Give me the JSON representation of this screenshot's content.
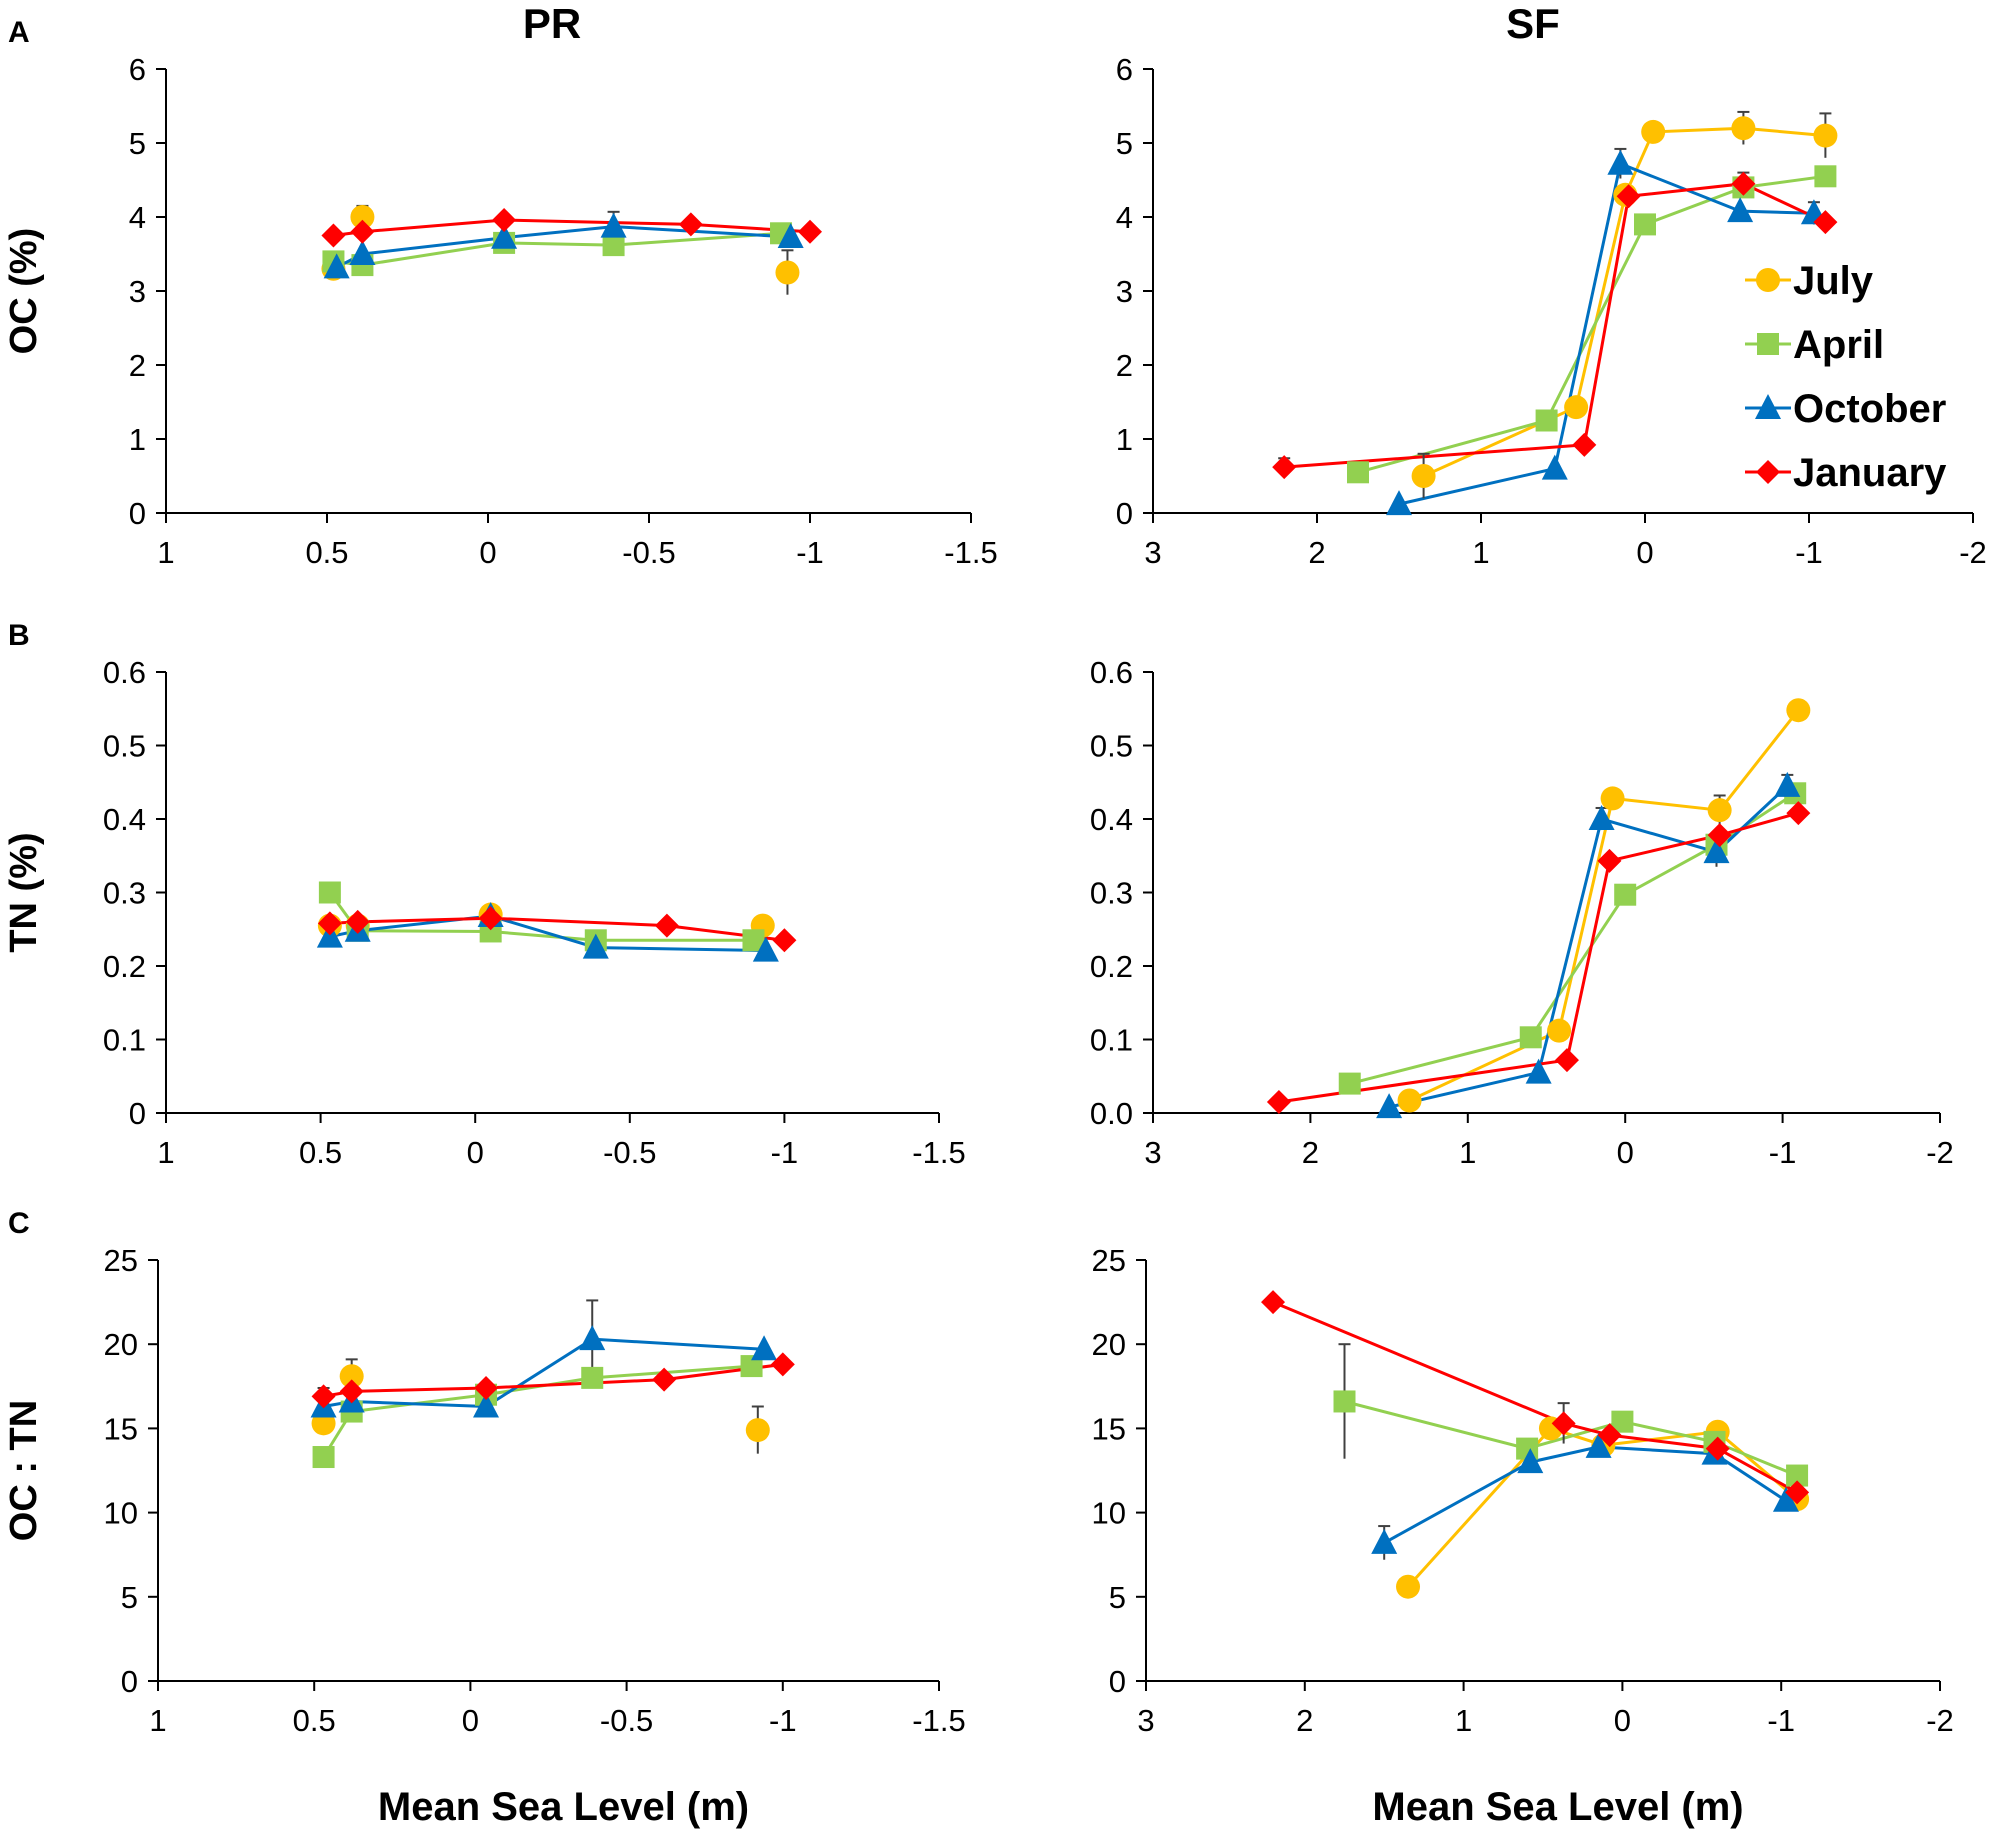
{
  "site_titles": [
    "PR",
    "SF"
  ],
  "panel_letters": [
    "A",
    "B",
    "C"
  ],
  "colors": {
    "July": "#ffc000",
    "April": "#92d050",
    "October": "#0070c0",
    "January": "#ff0000",
    "axis": "#000000",
    "errorbar": "#404040"
  },
  "legend": {
    "placement": "right, inside SF OC panel",
    "items": [
      {
        "label": "July",
        "series": "July",
        "marker": "circle"
      },
      {
        "label": "April",
        "series": "April",
        "marker": "square"
      },
      {
        "label": "October",
        "series": "October",
        "marker": "triangle"
      },
      {
        "label": "January",
        "series": "January",
        "marker": "diamond"
      }
    ]
  },
  "chart_data": [
    {
      "type": "line",
      "row": 0,
      "col": 0,
      "title": "PR",
      "panel": "A",
      "ylabel": "OC (%)",
      "xlabel": "",
      "xlim": [
        1,
        -1.5
      ],
      "ylim": [
        0,
        6
      ],
      "xticks": [
        "1",
        "0.5",
        "0",
        "-0.5",
        "-1",
        "-1.5"
      ],
      "yticks": [
        "0",
        "1",
        "2",
        "3",
        "4",
        "5",
        "6"
      ],
      "series": [
        {
          "name": "July",
          "marker": "circle",
          "line": false,
          "points": [
            {
              "x": 0.48,
              "y": 3.3
            },
            {
              "x": 0.39,
              "y": 4.0,
              "err": 0.15
            },
            {
              "x": -0.93,
              "y": 3.25,
              "err": 0.3
            }
          ]
        },
        {
          "name": "April",
          "marker": "square",
          "line": true,
          "points": [
            {
              "x": 0.48,
              "y": 3.4
            },
            {
              "x": 0.39,
              "y": 3.35
            },
            {
              "x": -0.05,
              "y": 3.65
            },
            {
              "x": -0.39,
              "y": 3.62
            },
            {
              "x": -0.91,
              "y": 3.78
            }
          ]
        },
        {
          "name": "October",
          "marker": "triangle",
          "line": true,
          "points": [
            {
              "x": 0.47,
              "y": 3.32
            },
            {
              "x": 0.39,
              "y": 3.5
            },
            {
              "x": -0.05,
              "y": 3.72
            },
            {
              "x": -0.39,
              "y": 3.87,
              "err": 0.2
            },
            {
              "x": -0.94,
              "y": 3.73
            }
          ]
        },
        {
          "name": "January",
          "marker": "diamond",
          "line": true,
          "points": [
            {
              "x": 0.48,
              "y": 3.75
            },
            {
              "x": 0.39,
              "y": 3.8
            },
            {
              "x": -0.05,
              "y": 3.96
            },
            {
              "x": -0.63,
              "y": 3.9
            },
            {
              "x": -1.0,
              "y": 3.8
            }
          ]
        }
      ]
    },
    {
      "type": "line",
      "row": 0,
      "col": 1,
      "title": "SF",
      "panel": "",
      "ylabel": "",
      "xlabel": "",
      "xlim": [
        3,
        -2
      ],
      "ylim": [
        0,
        6
      ],
      "xticks": [
        "3",
        "2",
        "1",
        "0",
        "-1",
        "-2"
      ],
      "yticks": [
        "0",
        "1",
        "2",
        "3",
        "4",
        "5",
        "6"
      ],
      "legend": true,
      "series": [
        {
          "name": "July",
          "marker": "circle",
          "line": true,
          "points": [
            {
              "x": 1.35,
              "y": 0.5,
              "err": 0.3
            },
            {
              "x": 0.42,
              "y": 1.43
            },
            {
              "x": 0.12,
              "y": 4.3
            },
            {
              "x": -0.05,
              "y": 5.15
            },
            {
              "x": -0.6,
              "y": 5.2,
              "err": 0.22
            },
            {
              "x": -1.1,
              "y": 5.1,
              "err": 0.3
            }
          ]
        },
        {
          "name": "April",
          "marker": "square",
          "line": true,
          "points": [
            {
              "x": 1.75,
              "y": 0.55
            },
            {
              "x": 0.6,
              "y": 1.25
            },
            {
              "x": 0.0,
              "y": 3.9
            },
            {
              "x": -0.6,
              "y": 4.4
            },
            {
              "x": -1.1,
              "y": 4.55
            }
          ]
        },
        {
          "name": "October",
          "marker": "triangle",
          "line": true,
          "points": [
            {
              "x": 1.5,
              "y": 0.12
            },
            {
              "x": 0.55,
              "y": 0.6
            },
            {
              "x": 0.15,
              "y": 4.72,
              "err": 0.2
            },
            {
              "x": -0.58,
              "y": 4.08
            },
            {
              "x": -1.03,
              "y": 4.05,
              "err": 0.15
            }
          ]
        },
        {
          "name": "January",
          "marker": "diamond",
          "line": true,
          "points": [
            {
              "x": 2.2,
              "y": 0.62,
              "err": 0.12
            },
            {
              "x": 0.37,
              "y": 0.92
            },
            {
              "x": 0.1,
              "y": 4.28
            },
            {
              "x": -0.6,
              "y": 4.45,
              "err": 0.15
            },
            {
              "x": -1.1,
              "y": 3.93
            }
          ]
        }
      ]
    },
    {
      "type": "line",
      "row": 1,
      "col": 0,
      "title": "",
      "panel": "B",
      "ylabel": "TN (%)",
      "xlabel": "",
      "xlim": [
        1,
        -1.5
      ],
      "ylim": [
        0,
        0.6
      ],
      "xticks": [
        "1",
        "0.5",
        "0",
        "-0.5",
        "-1",
        "-1.5"
      ],
      "yticks": [
        "0",
        "0.1",
        "0.2",
        "0.3",
        "0.4",
        "0.5",
        "0.6"
      ],
      "series": [
        {
          "name": "July",
          "marker": "circle",
          "line": false,
          "points": [
            {
              "x": 0.47,
              "y": 0.255
            },
            {
              "x": 0.38,
              "y": 0.255
            },
            {
              "x": -0.05,
              "y": 0.27
            },
            {
              "x": -0.93,
              "y": 0.255
            }
          ]
        },
        {
          "name": "April",
          "marker": "square",
          "line": true,
          "points": [
            {
              "x": 0.47,
              "y": 0.3,
              "err": 0.012
            },
            {
              "x": 0.38,
              "y": 0.248
            },
            {
              "x": -0.05,
              "y": 0.247
            },
            {
              "x": -0.39,
              "y": 0.235
            },
            {
              "x": -0.9,
              "y": 0.235
            }
          ]
        },
        {
          "name": "October",
          "marker": "triangle",
          "line": true,
          "points": [
            {
              "x": 0.47,
              "y": 0.24
            },
            {
              "x": 0.38,
              "y": 0.248
            },
            {
              "x": -0.05,
              "y": 0.268
            },
            {
              "x": -0.39,
              "y": 0.225
            },
            {
              "x": -0.94,
              "y": 0.221
            }
          ]
        },
        {
          "name": "January",
          "marker": "diamond",
          "line": true,
          "points": [
            {
              "x": 0.47,
              "y": 0.258
            },
            {
              "x": 0.38,
              "y": 0.26
            },
            {
              "x": -0.05,
              "y": 0.265
            },
            {
              "x": -0.62,
              "y": 0.255
            },
            {
              "x": -1.0,
              "y": 0.235
            }
          ]
        }
      ]
    },
    {
      "type": "line",
      "row": 1,
      "col": 1,
      "title": "",
      "panel": "",
      "ylabel": "",
      "xlabel": "",
      "xlim": [
        3,
        -2
      ],
      "ylim": [
        0,
        0.6
      ],
      "xticks": [
        "3",
        "2",
        "1",
        "0",
        "-1",
        "-2"
      ],
      "yticks": [
        "0.0",
        "0.1",
        "0.2",
        "0.3",
        "0.4",
        "0.5",
        "0.6"
      ],
      "series": [
        {
          "name": "July",
          "marker": "circle",
          "line": true,
          "points": [
            {
              "x": 1.37,
              "y": 0.017
            },
            {
              "x": 0.42,
              "y": 0.112
            },
            {
              "x": 0.08,
              "y": 0.428
            },
            {
              "x": -0.6,
              "y": 0.412,
              "err": 0.02
            },
            {
              "x": -1.1,
              "y": 0.548
            }
          ]
        },
        {
          "name": "April",
          "marker": "square",
          "line": true,
          "points": [
            {
              "x": 1.75,
              "y": 0.04
            },
            {
              "x": 0.6,
              "y": 0.103
            },
            {
              "x": 0.0,
              "y": 0.297
            },
            {
              "x": -0.58,
              "y": 0.365
            },
            {
              "x": -1.08,
              "y": 0.435
            }
          ]
        },
        {
          "name": "October",
          "marker": "triangle",
          "line": true,
          "points": [
            {
              "x": 1.5,
              "y": 0.008
            },
            {
              "x": 0.55,
              "y": 0.055
            },
            {
              "x": 0.15,
              "y": 0.4,
              "err": 0.015
            },
            {
              "x": -0.58,
              "y": 0.355,
              "err": 0.02
            },
            {
              "x": -1.03,
              "y": 0.445,
              "err": 0.015
            }
          ]
        },
        {
          "name": "January",
          "marker": "diamond",
          "line": true,
          "points": [
            {
              "x": 2.2,
              "y": 0.015
            },
            {
              "x": 0.37,
              "y": 0.072
            },
            {
              "x": 0.1,
              "y": 0.343
            },
            {
              "x": -0.6,
              "y": 0.378
            },
            {
              "x": -1.1,
              "y": 0.408
            }
          ]
        }
      ]
    },
    {
      "type": "line",
      "row": 2,
      "col": 0,
      "title": "",
      "panel": "C",
      "ylabel": "OC : TN",
      "xlabel": "Mean Sea Level (m)",
      "xlim": [
        1,
        -1.5
      ],
      "ylim": [
        0,
        25
      ],
      "xticks": [
        "1",
        "0.5",
        "0",
        "-0.5",
        "-1",
        "-1.5"
      ],
      "yticks": [
        "0",
        "5",
        "10",
        "15",
        "20",
        "25"
      ],
      "series": [
        {
          "name": "July",
          "marker": "circle",
          "line": false,
          "points": [
            {
              "x": 0.47,
              "y": 15.3
            },
            {
              "x": 0.38,
              "y": 18.1,
              "err": 1.0
            },
            {
              "x": -0.92,
              "y": 14.9,
              "err": 1.4
            }
          ]
        },
        {
          "name": "April",
          "marker": "square",
          "line": true,
          "points": [
            {
              "x": 0.47,
              "y": 13.3
            },
            {
              "x": 0.38,
              "y": 16.0
            },
            {
              "x": -0.05,
              "y": 17.0
            },
            {
              "x": -0.39,
              "y": 18.0
            },
            {
              "x": -0.9,
              "y": 18.7
            }
          ]
        },
        {
          "name": "October",
          "marker": "triangle",
          "line": true,
          "points": [
            {
              "x": 0.47,
              "y": 16.3
            },
            {
              "x": 0.38,
              "y": 16.6
            },
            {
              "x": -0.05,
              "y": 16.3
            },
            {
              "x": -0.39,
              "y": 20.3,
              "err": 2.3
            },
            {
              "x": -0.94,
              "y": 19.7
            }
          ]
        },
        {
          "name": "January",
          "marker": "diamond",
          "line": true,
          "points": [
            {
              "x": 0.47,
              "y": 16.9,
              "err": 0.5
            },
            {
              "x": 0.38,
              "y": 17.2
            },
            {
              "x": -0.05,
              "y": 17.4
            },
            {
              "x": -0.62,
              "y": 17.9
            },
            {
              "x": -1.0,
              "y": 18.8
            }
          ]
        }
      ]
    },
    {
      "type": "line",
      "row": 2,
      "col": 1,
      "title": "",
      "panel": "",
      "ylabel": "",
      "xlabel": "Mean Sea Level (m)",
      "xlim": [
        3,
        -2
      ],
      "ylim": [
        0,
        25
      ],
      "xticks": [
        "3",
        "2",
        "1",
        "0",
        "-1",
        "-2"
      ],
      "yticks": [
        "0",
        "5",
        "10",
        "15",
        "20",
        "25"
      ],
      "series": [
        {
          "name": "July",
          "marker": "circle",
          "line": true,
          "points": [
            {
              "x": 1.35,
              "y": 5.6
            },
            {
              "x": 0.45,
              "y": 15.0
            },
            {
              "x": 0.12,
              "y": 14.0
            },
            {
              "x": -0.6,
              "y": 14.8
            },
            {
              "x": -1.1,
              "y": 10.8
            }
          ]
        },
        {
          "name": "April",
          "marker": "square",
          "line": true,
          "points": [
            {
              "x": 1.75,
              "y": 16.6,
              "err": 3.4
            },
            {
              "x": 0.6,
              "y": 13.8
            },
            {
              "x": 0.0,
              "y": 15.4
            },
            {
              "x": -0.58,
              "y": 14.2
            },
            {
              "x": -1.1,
              "y": 12.2
            }
          ]
        },
        {
          "name": "October",
          "marker": "triangle",
          "line": true,
          "points": [
            {
              "x": 1.5,
              "y": 8.2,
              "err": 1.0
            },
            {
              "x": 0.58,
              "y": 13.0
            },
            {
              "x": 0.15,
              "y": 13.9
            },
            {
              "x": -0.58,
              "y": 13.5
            },
            {
              "x": -1.03,
              "y": 10.7
            }
          ]
        },
        {
          "name": "January",
          "marker": "diamond",
          "line": true,
          "points": [
            {
              "x": 2.2,
              "y": 22.5
            },
            {
              "x": 0.37,
              "y": 15.3,
              "err": 1.2
            },
            {
              "x": 0.08,
              "y": 14.6
            },
            {
              "x": -0.6,
              "y": 13.8
            },
            {
              "x": -1.1,
              "y": 11.2
            }
          ]
        }
      ]
    }
  ]
}
